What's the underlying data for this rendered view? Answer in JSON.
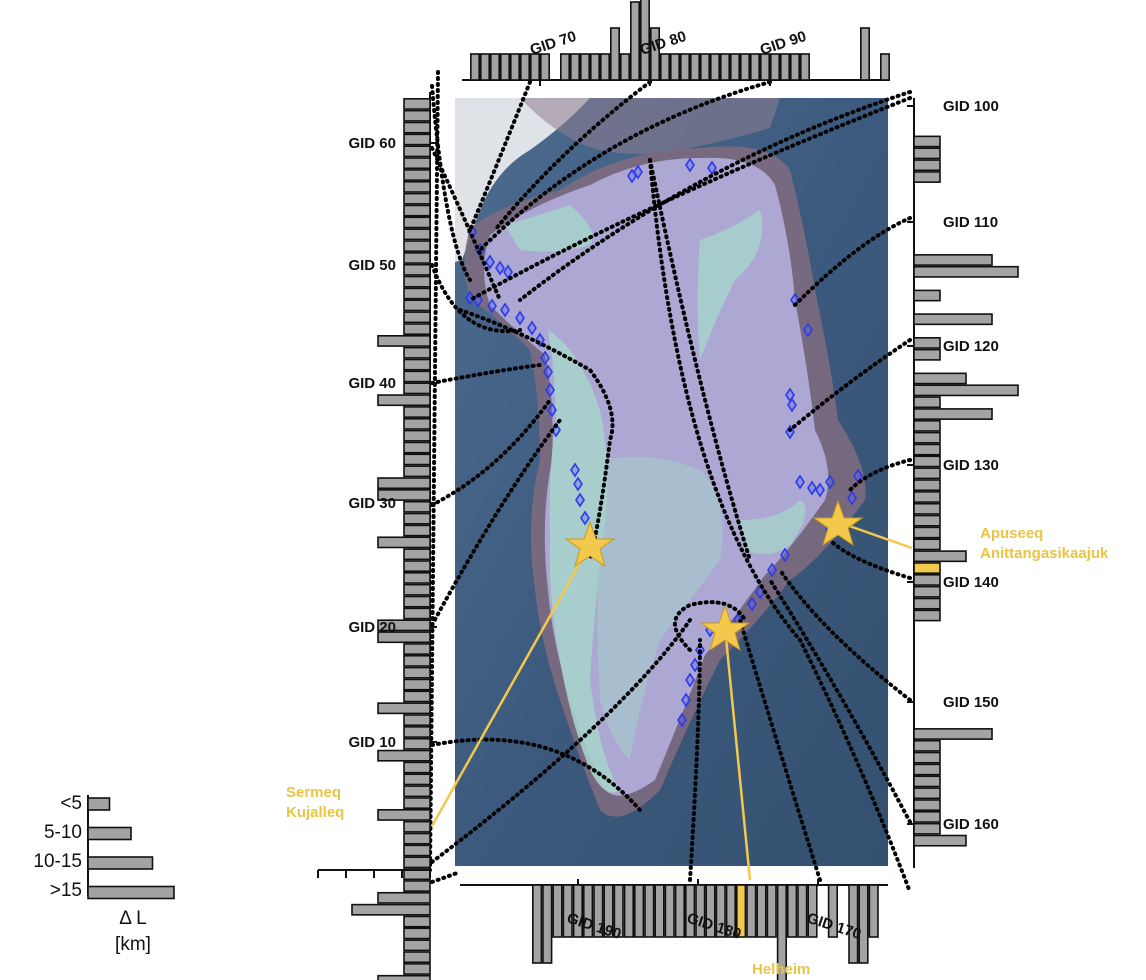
{
  "colors": {
    "ocean": "#3c5a7e",
    "ice": "#aca7d3",
    "fast_zone": "#a6d2cb",
    "bar_fill": "#a3a3a3",
    "highlight": "#f2c94c",
    "marker": "#2f3ae8"
  },
  "left_axis": {
    "labels": [
      {
        "text": "GID 60",
        "gid": 60
      },
      {
        "text": "GID 50",
        "gid": 50
      },
      {
        "text": "GID 40",
        "gid": 40
      },
      {
        "text": "GID 30",
        "gid": 30
      },
      {
        "text": "GID 20",
        "gid": 20
      },
      {
        "text": "GID 10",
        "gid": 10
      }
    ],
    "class_values": [
      1,
      1,
      1,
      1,
      1,
      1,
      1,
      1,
      1,
      1,
      1,
      1,
      1,
      1,
      1,
      1,
      1,
      1,
      1,
      1,
      2,
      1,
      1,
      1,
      1,
      2,
      1,
      1,
      1,
      1,
      1,
      1,
      2,
      2,
      1,
      1,
      1,
      2,
      1,
      1,
      1,
      1,
      1,
      1,
      2,
      2,
      1,
      1,
      1,
      1,
      1,
      2,
      1,
      1,
      1,
      2,
      1,
      1,
      1,
      1,
      2,
      1,
      1,
      1,
      1,
      1,
      1,
      2,
      3,
      1,
      1,
      1,
      1,
      1,
      2,
      3,
      4,
      1
    ],
    "highlight_index": 75
  },
  "top_axis": {
    "labels": [
      {
        "text": "GID 70",
        "gid": 70
      },
      {
        "text": "GID 80",
        "gid": 80
      },
      {
        "text": "GID 90",
        "gid": 90
      }
    ],
    "class_values": [
      1,
      1,
      1,
      1,
      1,
      1,
      1,
      1,
      0,
      1,
      1,
      1,
      1,
      1,
      2,
      1,
      3,
      4,
      2,
      1,
      1,
      1,
      1,
      1,
      1,
      1,
      1,
      1,
      1,
      1,
      1,
      1,
      1,
      1,
      0,
      0,
      0,
      0,
      0,
      2,
      0,
      1
    ]
  },
  "right_axis": {
    "labels": [
      {
        "text": "GID 100",
        "gid": 100
      },
      {
        "text": "GID 110",
        "gid": 110
      },
      {
        "text": "GID 120",
        "gid": 120
      },
      {
        "text": "GID 130",
        "gid": 130
      },
      {
        "text": "GID 140",
        "gid": 140
      },
      {
        "text": "GID 150",
        "gid": 150
      },
      {
        "text": "GID 160",
        "gid": 160
      }
    ],
    "class_values": [
      0,
      0,
      0,
      1,
      1,
      1,
      1,
      0,
      0,
      0,
      0,
      0,
      0,
      3,
      4,
      0,
      1,
      0,
      3,
      0,
      1,
      1,
      0,
      2,
      4,
      1,
      3,
      1,
      1,
      1,
      1,
      1,
      1,
      1,
      1,
      1,
      1,
      1,
      2,
      1,
      1,
      1,
      1,
      1,
      0,
      0,
      0,
      0,
      0,
      0,
      0,
      0,
      0,
      3,
      1,
      1,
      1,
      1,
      1,
      1,
      1,
      1,
      2
    ],
    "highlight_index": 39
  },
  "bottom_axis": {
    "labels": [
      {
        "text": "GID 190",
        "gid": 190
      },
      {
        "text": "GID 180",
        "gid": 180
      },
      {
        "text": "GID 170",
        "gid": 170
      }
    ],
    "class_values": [
      3,
      3,
      2,
      2,
      2,
      2,
      2,
      2,
      2,
      2,
      2,
      2,
      2,
      2,
      2,
      2,
      2,
      2,
      2,
      2,
      2,
      2,
      2,
      2,
      4,
      2,
      2,
      2,
      0,
      2,
      0,
      3,
      3,
      2
    ],
    "highlight_index": 20
  },
  "legend": {
    "classes": [
      "<5",
      "5-10",
      "10-15",
      ">15"
    ],
    "class_values": [
      1,
      2,
      3,
      4
    ],
    "symbol": "Δ L",
    "unit": "[km]"
  },
  "glaciers": [
    {
      "name_lines": [
        "Sermeq",
        "Kujalleq"
      ]
    },
    {
      "name_lines": [
        "Apuseeq",
        "Anittangasikaajuk"
      ]
    },
    {
      "name_lines": [
        "Helheim"
      ]
    }
  ]
}
